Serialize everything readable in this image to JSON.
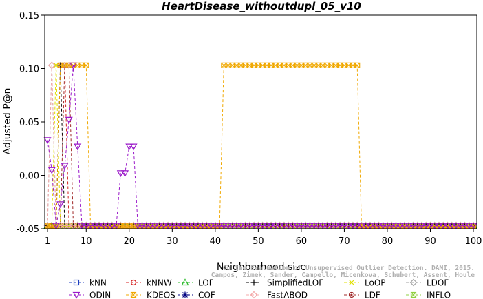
{
  "chart_data": {
    "type": "line",
    "title": "HeartDisease_withoutdupl_05_v10",
    "xlabel": "Neighborhood size",
    "ylabel": "Adjusted P@n",
    "xlim": [
      1,
      100
    ],
    "ylim": [
      -0.05,
      0.15
    ],
    "xticks": [
      1,
      10,
      20,
      30,
      40,
      50,
      60,
      70,
      80,
      90,
      100
    ],
    "yticks": [
      -0.05,
      0.0,
      0.05,
      0.1,
      0.15
    ],
    "ytick_labels": [
      "-0.05",
      "0.00",
      "0.05",
      "0.10",
      "0.15"
    ],
    "grid": false,
    "legend_position": "bottom",
    "baseline": -0.047,
    "watermark": [
      "Campos, Zimek, Sander, Campello, Micenkova, Schubert, Assent, Houle",
      "On the Evaluation of Unsupervised Outlier Detection. DAMI, 2015."
    ],
    "series": [
      {
        "name": "kNN",
        "color": "#1f3fbf",
        "marker": "square",
        "points": []
      },
      {
        "name": "kNNW",
        "color": "#d42020",
        "marker": "circle",
        "points": [
          [
            1,
            -0.047
          ],
          [
            2,
            -0.047
          ],
          [
            3,
            -0.047
          ],
          [
            4,
            0.103
          ],
          [
            5,
            0.103
          ],
          [
            6,
            -0.047
          ]
        ]
      },
      {
        "name": "LOF",
        "color": "#22b822",
        "marker": "triangle-up",
        "points": []
      },
      {
        "name": "SimplifiedLOF",
        "color": "#000000",
        "marker": "plus",
        "points": [
          [
            3,
            -0.047
          ],
          [
            4,
            0.103
          ],
          [
            5,
            -0.047
          ]
        ]
      },
      {
        "name": "LoOP",
        "color": "#e0e000",
        "marker": "x",
        "points": [
          [
            2,
            -0.047
          ],
          [
            3,
            0.103
          ],
          [
            4,
            -0.047
          ]
        ]
      },
      {
        "name": "LDOF",
        "color": "#a0a0a0",
        "marker": "diamond",
        "points": [
          [
            1,
            -0.047
          ],
          [
            2,
            0.103
          ],
          [
            3,
            -0.047
          ]
        ]
      },
      {
        "name": "ODIN",
        "color": "#9a19c9",
        "marker": "triangle-down",
        "points": [
          [
            1,
            0.033
          ],
          [
            2,
            0.005
          ],
          [
            3,
            -0.047
          ],
          [
            4,
            -0.027
          ],
          [
            5,
            0.009
          ],
          [
            6,
            0.052
          ],
          [
            7,
            0.103
          ],
          [
            8,
            0.027
          ],
          [
            9,
            -0.047
          ],
          [
            17,
            -0.047
          ],
          [
            18,
            0.002
          ],
          [
            19,
            0.002
          ],
          [
            20,
            0.027
          ],
          [
            21,
            0.027
          ],
          [
            22,
            -0.047
          ]
        ]
      },
      {
        "name": "KDEOS",
        "color": "#f0a800",
        "marker": "square-x",
        "points": [
          [
            3,
            -0.047
          ],
          [
            4,
            0.103
          ],
          [
            5,
            0.103
          ],
          [
            6,
            0.103
          ],
          [
            7,
            0.103
          ],
          [
            8,
            0.103
          ],
          [
            9,
            0.103
          ],
          [
            10,
            0.103
          ],
          [
            11,
            -0.047
          ],
          [
            41,
            -0.047
          ],
          [
            42,
            0.103
          ],
          [
            43,
            0.103
          ],
          [
            44,
            0.103
          ],
          [
            45,
            0.103
          ],
          [
            46,
            0.103
          ],
          [
            47,
            0.103
          ],
          [
            48,
            0.103
          ],
          [
            49,
            0.103
          ],
          [
            50,
            0.103
          ],
          [
            51,
            0.103
          ],
          [
            52,
            0.103
          ],
          [
            53,
            0.103
          ],
          [
            54,
            0.103
          ],
          [
            55,
            0.103
          ],
          [
            56,
            0.103
          ],
          [
            57,
            0.103
          ],
          [
            58,
            0.103
          ],
          [
            59,
            0.103
          ],
          [
            60,
            0.103
          ],
          [
            61,
            0.103
          ],
          [
            62,
            0.103
          ],
          [
            63,
            0.103
          ],
          [
            64,
            0.103
          ],
          [
            65,
            0.103
          ],
          [
            66,
            0.103
          ],
          [
            67,
            0.103
          ],
          [
            68,
            0.103
          ],
          [
            69,
            0.103
          ],
          [
            70,
            0.103
          ],
          [
            71,
            0.103
          ],
          [
            72,
            0.103
          ],
          [
            73,
            0.103
          ],
          [
            74,
            -0.047
          ]
        ]
      },
      {
        "name": "COF",
        "color": "#000080",
        "marker": "asterisk",
        "points": []
      },
      {
        "name": "FastABOD",
        "color": "#f4a8a8",
        "marker": "diamond",
        "points": [
          [
            1,
            -0.047
          ],
          [
            2,
            0.103
          ],
          [
            3,
            -0.047
          ]
        ]
      },
      {
        "name": "LDF",
        "color": "#a02828",
        "marker": "circle-dot",
        "points": [
          [
            4,
            -0.047
          ],
          [
            5,
            0.103
          ],
          [
            6,
            0.103
          ],
          [
            7,
            -0.047
          ]
        ]
      },
      {
        "name": "INFLO",
        "color": "#90d040",
        "marker": "square-x",
        "points": []
      }
    ]
  }
}
